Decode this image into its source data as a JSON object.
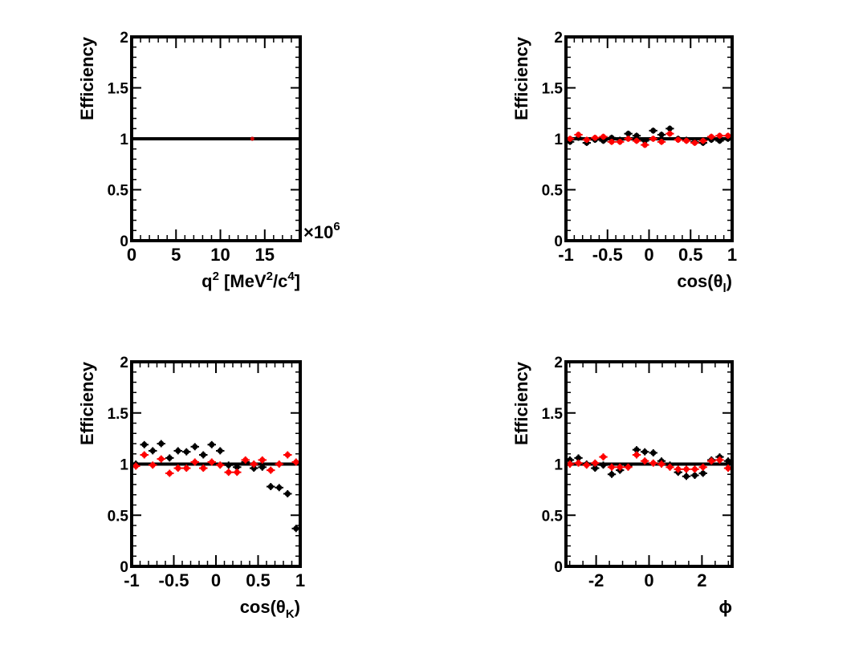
{
  "colors": {
    "black_series": "#000000",
    "red_series": "#ff0000",
    "reference_line": "#000000"
  },
  "chart_data": [
    {
      "type": "scatter",
      "ylabel": "Efficiency",
      "xlabel_parts": {
        "base": "q",
        "sup1": "2",
        "mid": " [MeV",
        "sup2": "2",
        "mid2": "/c",
        "sup3": "4",
        "end": "]"
      },
      "xlim": [
        0,
        19
      ],
      "ylim": [
        0,
        2
      ],
      "x_multiplier_label": "×10",
      "x_multiplier_exp": "6",
      "x_ticks": [
        0,
        5,
        10,
        15
      ],
      "x_tick_labels": [
        "0",
        "5",
        "10",
        "15"
      ],
      "y_ticks": [
        0,
        0.5,
        1,
        1.5,
        2
      ],
      "y_tick_labels": [
        "0",
        "0.5",
        "1",
        "1.5",
        "2"
      ],
      "reference_line": 1,
      "series": [
        {
          "color": "#000000",
          "x": [
            13.6
          ],
          "y": [
            1.0
          ],
          "xerr": 0,
          "yerr": 0
        },
        {
          "color": "#cc0000",
          "x": [
            13.6
          ],
          "y": [
            1.0
          ],
          "xerr": 0,
          "yerr": 0
        }
      ]
    },
    {
      "type": "scatter",
      "ylabel": "Efficiency",
      "xlabel_parts": {
        "base": "cos(θ",
        "sub": "l",
        "end": ")"
      },
      "xlim": [
        -1,
        1
      ],
      "ylim": [
        0,
        2
      ],
      "x_ticks": [
        -1,
        -0.5,
        0,
        0.5,
        1
      ],
      "x_tick_labels": [
        "-1",
        "-0.5",
        "0",
        "0.5",
        "1"
      ],
      "y_ticks": [
        0,
        0.5,
        1,
        1.5,
        2
      ],
      "y_tick_labels": [
        "0",
        "0.5",
        "1",
        "1.5",
        "2"
      ],
      "reference_line": 1,
      "series": [
        {
          "color": "#000000",
          "x": [
            -0.95,
            -0.85,
            -0.75,
            -0.65,
            -0.55,
            -0.45,
            -0.35,
            -0.25,
            -0.15,
            -0.05,
            0.05,
            0.15,
            0.25,
            0.35,
            0.45,
            0.55,
            0.65,
            0.75,
            0.85,
            0.95
          ],
          "y": [
            0.97,
            1.01,
            0.96,
            0.99,
            0.98,
            1.01,
            0.99,
            1.05,
            1.03,
            0.98,
            1.08,
            1.04,
            1.1,
            1.0,
            0.99,
            0.97,
            0.96,
            0.99,
            0.98,
            1.0
          ],
          "xerr": 0.05,
          "yerr": 0.03
        },
        {
          "color": "#ff0000",
          "x": [
            -0.95,
            -0.85,
            -0.75,
            -0.65,
            -0.55,
            -0.45,
            -0.35,
            -0.25,
            -0.15,
            -0.05,
            0.05,
            0.15,
            0.25,
            0.35,
            0.45,
            0.55,
            0.65,
            0.75,
            0.85,
            0.95
          ],
          "y": [
            1.0,
            1.04,
            0.99,
            1.01,
            1.02,
            0.97,
            0.97,
            1.0,
            0.98,
            0.94,
            1.0,
            0.97,
            1.05,
            0.99,
            0.98,
            0.96,
            0.98,
            1.02,
            1.03,
            1.03
          ],
          "xerr": 0.05,
          "yerr": 0.03
        }
      ]
    },
    {
      "type": "scatter",
      "ylabel": "Efficiency",
      "xlabel_parts": {
        "base": "cos(θ",
        "sub": "K",
        "end": ")"
      },
      "xlim": [
        -1,
        1
      ],
      "ylim": [
        0,
        2
      ],
      "x_ticks": [
        -1,
        -0.5,
        0,
        0.5,
        1
      ],
      "x_tick_labels": [
        "-1",
        "-0.5",
        "0",
        "0.5",
        "1"
      ],
      "y_ticks": [
        0,
        0.5,
        1,
        1.5,
        2
      ],
      "y_tick_labels": [
        "0",
        "0.5",
        "1",
        "1.5",
        "2"
      ],
      "reference_line": 1,
      "series": [
        {
          "color": "#000000",
          "x": [
            -0.95,
            -0.85,
            -0.75,
            -0.65,
            -0.55,
            -0.45,
            -0.35,
            -0.25,
            -0.15,
            -0.05,
            0.05,
            0.15,
            0.25,
            0.35,
            0.45,
            0.55,
            0.65,
            0.75,
            0.85,
            0.95
          ],
          "y": [
            1.0,
            1.19,
            1.13,
            1.2,
            1.06,
            1.13,
            1.12,
            1.17,
            1.09,
            1.19,
            1.13,
            0.99,
            0.97,
            1.02,
            0.96,
            0.97,
            0.78,
            0.77,
            0.71,
            0.37
          ],
          "xerr": 0.05,
          "yerr": 0.035
        },
        {
          "color": "#ff0000",
          "x": [
            -0.95,
            -0.85,
            -0.75,
            -0.65,
            -0.55,
            -0.45,
            -0.35,
            -0.25,
            -0.15,
            -0.05,
            0.05,
            0.15,
            0.25,
            0.35,
            0.45,
            0.55,
            0.65,
            0.75,
            0.85,
            0.95
          ],
          "y": [
            0.98,
            1.09,
            0.99,
            1.05,
            0.91,
            0.96,
            0.96,
            1.02,
            0.96,
            1.02,
            0.99,
            0.92,
            0.92,
            1.04,
            1.0,
            1.04,
            0.94,
            1.0,
            1.09,
            1.02
          ],
          "xerr": 0.05,
          "yerr": 0.035
        }
      ]
    },
    {
      "type": "scatter",
      "ylabel": "Efficiency",
      "xlabel_parts": {
        "base": "ϕ"
      },
      "xlim": [
        -3.1416,
        3.1416
      ],
      "ylim": [
        0,
        2
      ],
      "x_ticks": [
        -2,
        0,
        2
      ],
      "x_tick_labels": [
        "-2",
        "0",
        "2"
      ],
      "y_ticks": [
        0,
        0.5,
        1,
        1.5,
        2
      ],
      "y_tick_labels": [
        "0",
        "0.5",
        "1",
        "1.5",
        "2"
      ],
      "reference_line": 1,
      "series": [
        {
          "color": "#000000",
          "x": [
            -2.99,
            -2.67,
            -2.36,
            -2.04,
            -1.73,
            -1.41,
            -1.1,
            -0.79,
            -0.47,
            -0.16,
            0.16,
            0.47,
            0.79,
            1.1,
            1.41,
            1.73,
            2.04,
            2.36,
            2.67,
            2.99
          ],
          "y": [
            1.04,
            1.06,
            1.0,
            0.96,
            0.99,
            0.9,
            0.94,
            0.98,
            1.14,
            1.12,
            1.11,
            1.03,
            0.99,
            0.92,
            0.88,
            0.89,
            0.91,
            1.04,
            1.07,
            1.03
          ],
          "xerr": 0.157,
          "yerr": 0.035
        },
        {
          "color": "#ff0000",
          "x": [
            -2.99,
            -2.67,
            -2.36,
            -2.04,
            -1.73,
            -1.41,
            -1.1,
            -0.79,
            -0.47,
            -0.16,
            0.16,
            0.47,
            0.79,
            1.1,
            1.41,
            1.73,
            2.04,
            2.36,
            2.67,
            2.99
          ],
          "y": [
            1.0,
            1.01,
            0.99,
            1.01,
            1.07,
            0.97,
            0.97,
            0.97,
            1.09,
            1.03,
            1.01,
            1.0,
            0.97,
            0.95,
            0.95,
            0.95,
            0.97,
            1.03,
            1.04,
            0.96
          ],
          "xerr": 0.157,
          "yerr": 0.035
        }
      ]
    }
  ]
}
